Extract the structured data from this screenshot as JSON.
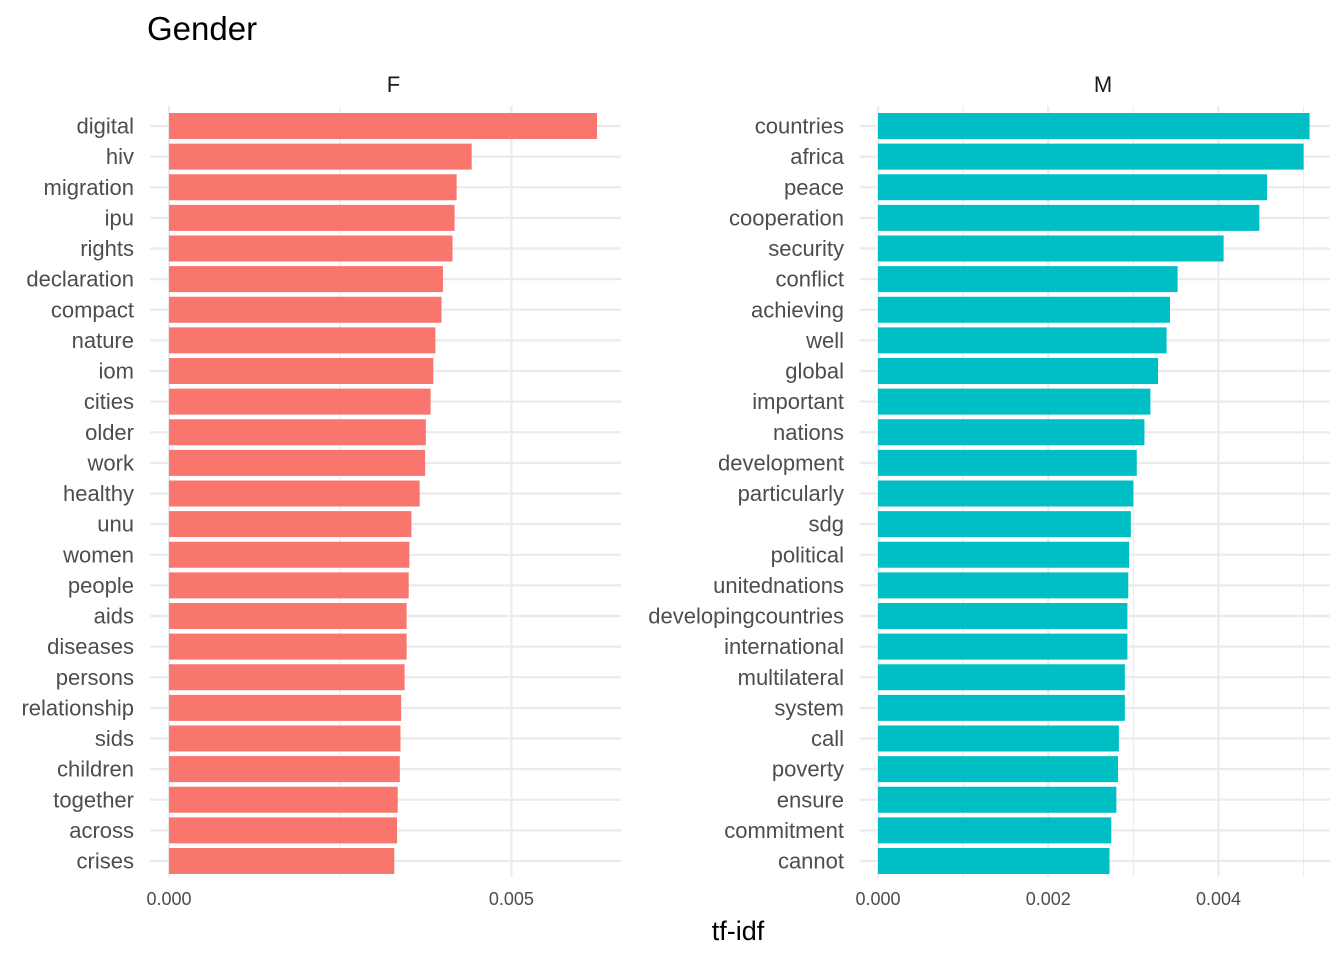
{
  "chart_data": {
    "type": "bar",
    "orientation": "horizontal",
    "title": "Gender",
    "xlabel": "tf-idf",
    "ylabel": "",
    "grid": true,
    "legend": "none",
    "facets": [
      {
        "name": "F",
        "color": "#F8766D",
        "xlim": [
          0,
          0.0066
        ],
        "ticks": [
          0,
          0.005
        ],
        "tick_labels": [
          "0.000",
          "0.005"
        ],
        "categories": [
          "digital",
          "hiv",
          "migration",
          "ipu",
          "rights",
          "declaration",
          "compact",
          "nature",
          "iom",
          "cities",
          "older",
          "work",
          "healthy",
          "unu",
          "women",
          "people",
          "aids",
          "diseases",
          "persons",
          "relationship",
          "sids",
          "children",
          "together",
          "across",
          "crises"
        ],
        "values": [
          0.00625,
          0.00442,
          0.0042,
          0.00417,
          0.00414,
          0.004,
          0.00398,
          0.00389,
          0.00386,
          0.00382,
          0.00375,
          0.00374,
          0.00366,
          0.00354,
          0.00351,
          0.0035,
          0.00347,
          0.00347,
          0.00344,
          0.00339,
          0.00338,
          0.00337,
          0.00334,
          0.00333,
          0.00329
        ]
      },
      {
        "name": "M",
        "color": "#00BFC4",
        "xlim": [
          0,
          0.00531
        ],
        "ticks": [
          0,
          0.002,
          0.004
        ],
        "tick_labels": [
          "0.000",
          "0.002",
          "0.004"
        ],
        "categories": [
          "countries",
          "africa",
          "peace",
          "cooperation",
          "security",
          "conflict",
          "achieving",
          "well",
          "global",
          "important",
          "nations",
          "development",
          "particularly",
          "sdg",
          "political",
          "unitednations",
          "developingcountries",
          "international",
          "multilateral",
          "system",
          "call",
          "poverty",
          "ensure",
          "commitment",
          "cannot"
        ],
        "values": [
          0.00507,
          0.005,
          0.00457,
          0.00448,
          0.00406,
          0.00352,
          0.00343,
          0.00339,
          0.00329,
          0.0032,
          0.00313,
          0.00304,
          0.003,
          0.00297,
          0.00295,
          0.00294,
          0.00293,
          0.00293,
          0.0029,
          0.0029,
          0.00283,
          0.00282,
          0.0028,
          0.00274,
          0.00272
        ]
      }
    ]
  }
}
